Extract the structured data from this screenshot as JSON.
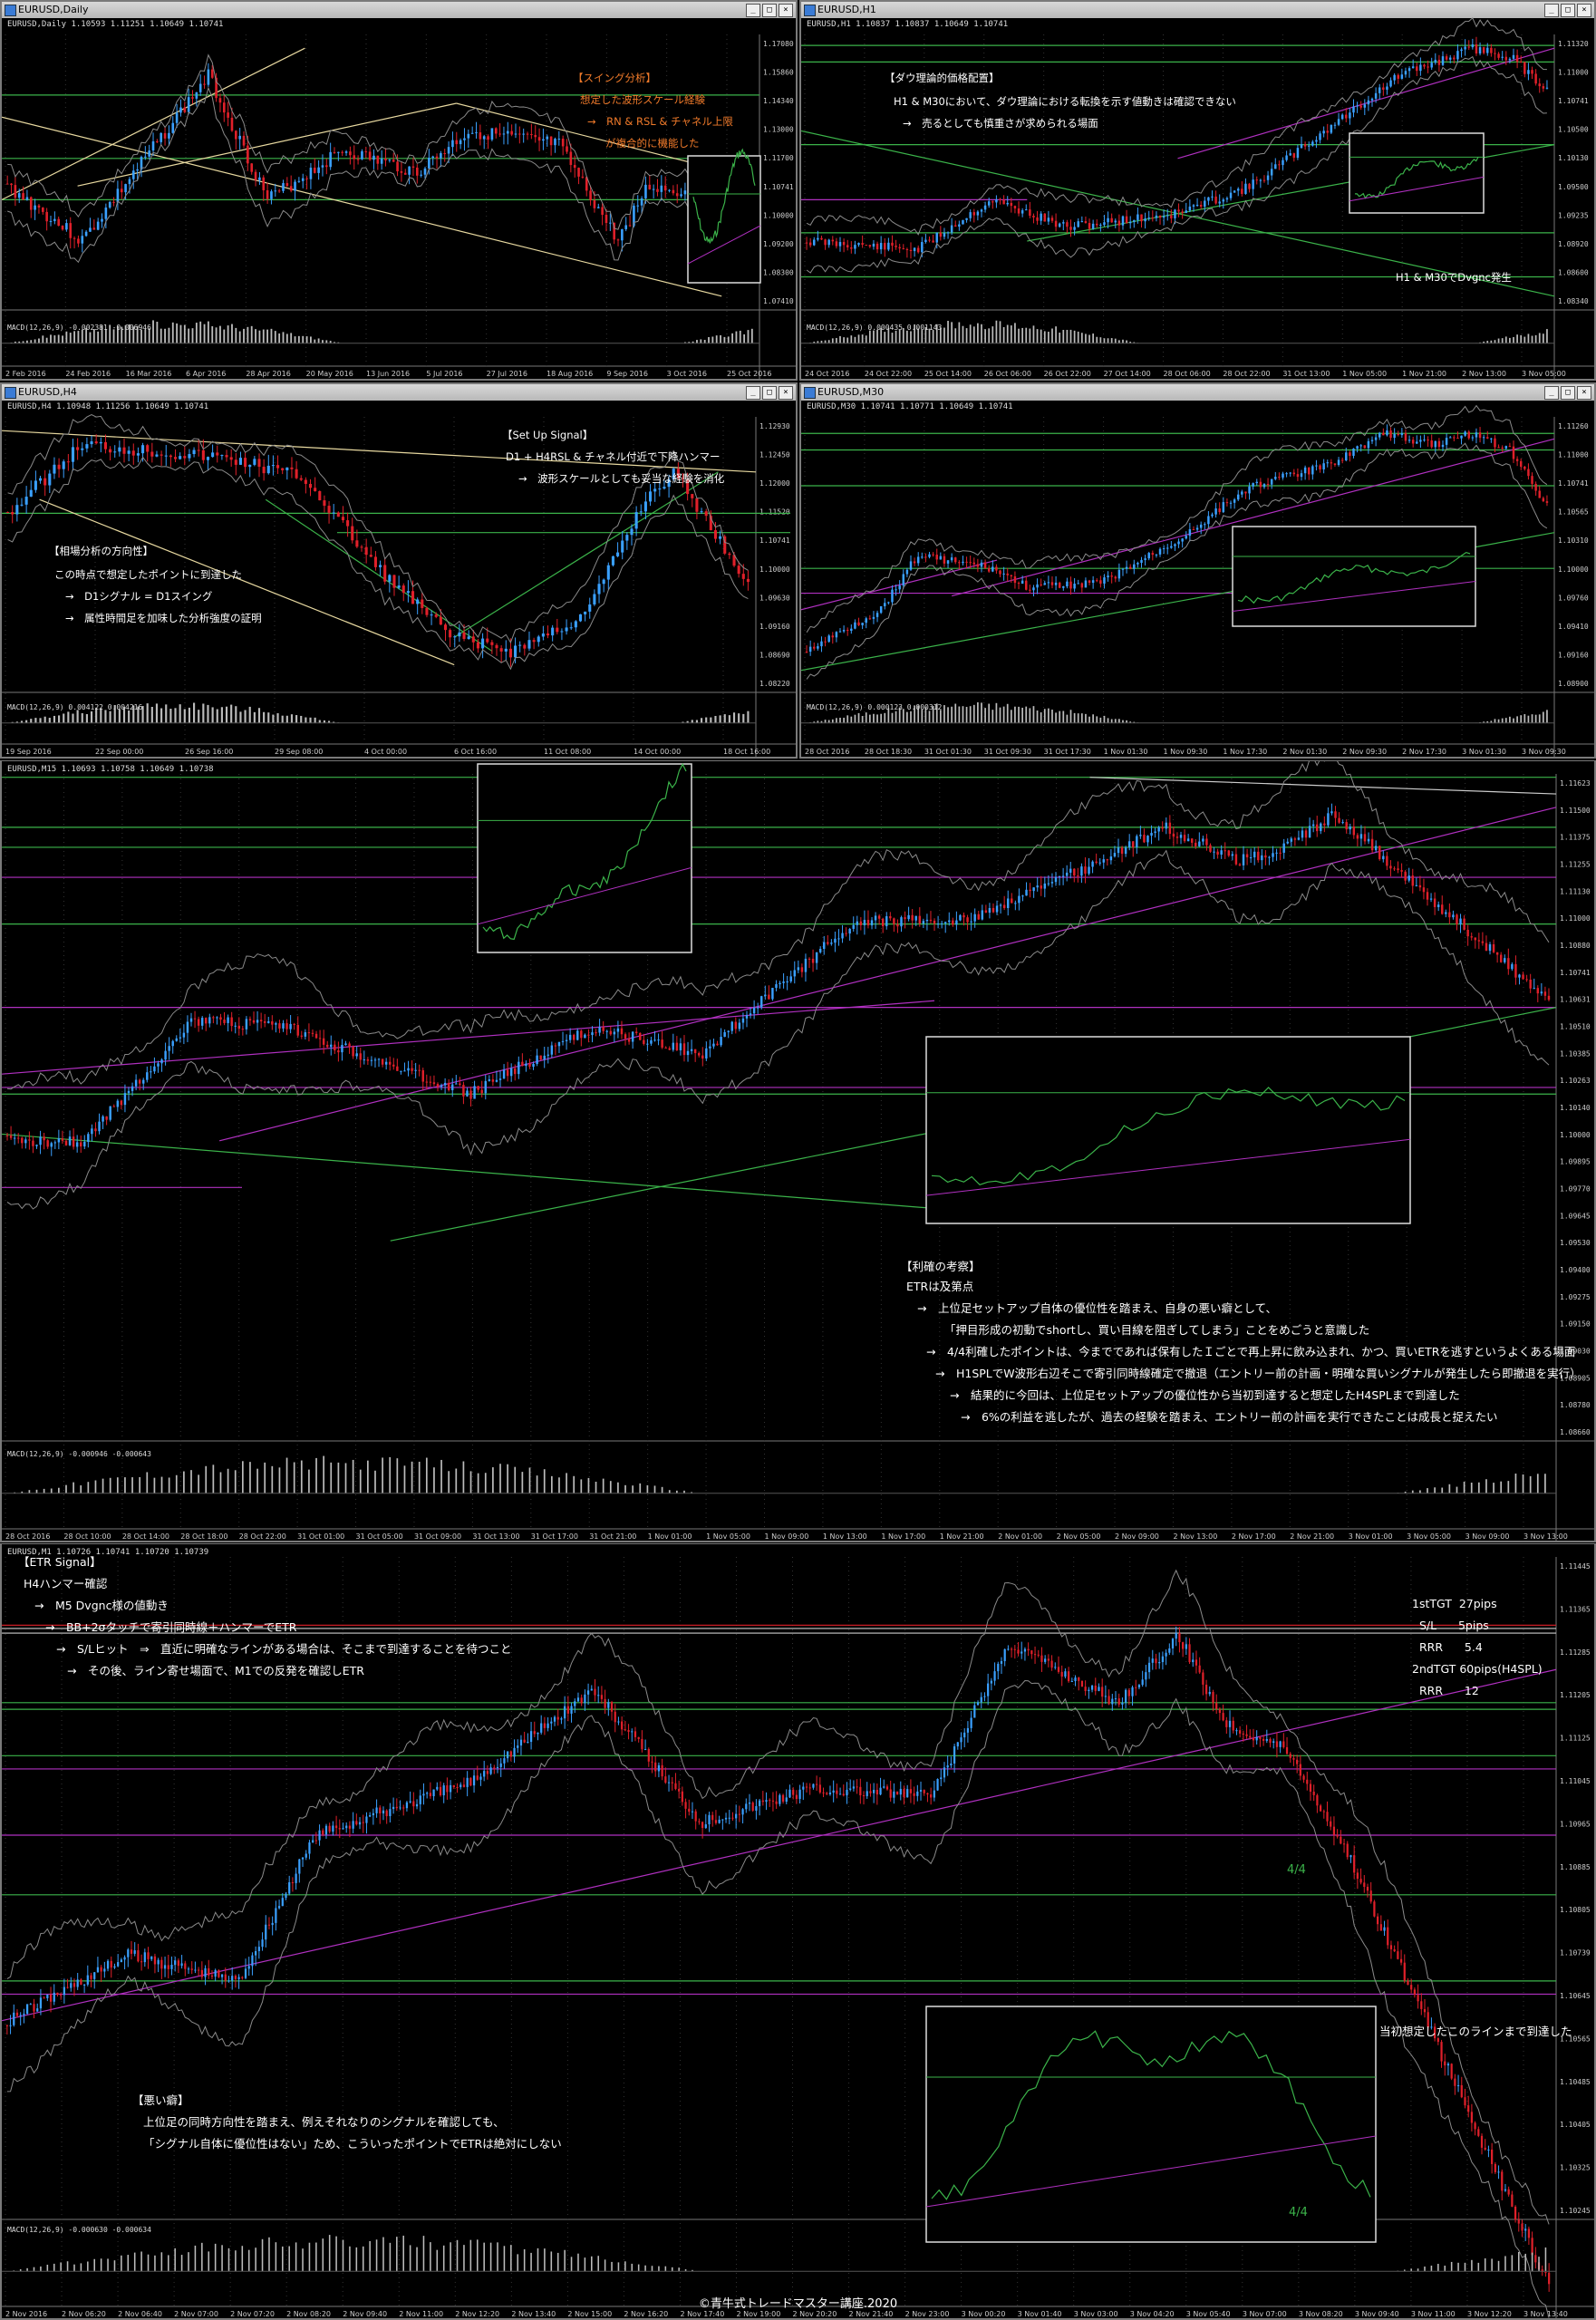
{
  "windows": {
    "daily": {
      "title": "EURUSD,Daily",
      "info": "EURUSD,Daily  1.10593 1.11251 1.10649 1.10741",
      "macd": "MACD(12,26,9) -0.002381 -0.006946",
      "xlabels": [
        "2 Feb 2016",
        "24 Feb 2016",
        "16 Mar 2016",
        "6 Apr 2016",
        "28 Apr 2016",
        "20 May 2016",
        "13 Jun 2016",
        "5 Jul 2016",
        "27 Jul 2016",
        "18 Aug 2016",
        "9 Sep 2016",
        "3 Oct 2016",
        "25 Oct 2016"
      ],
      "ylabels": [
        "1.17080",
        "1.15860",
        "1.14340",
        "1.13000",
        "1.11700",
        "1.10741",
        "1.10000",
        "1.09200",
        "1.08300",
        "1.07410"
      ],
      "notes": [
        {
          "text": "【スイング分析】"
        },
        {
          "text": "想定した波形スケール経験"
        },
        {
          "text": "→　RN & RSL & チャネル上限"
        },
        {
          "text": "が複合的に機能した"
        }
      ]
    },
    "h1": {
      "title": "EURUSD,H1",
      "info": "EURUSD,H1  1.10837 1.10837 1.10649 1.10741",
      "macd": "MACD(12,26,9) 0.000435 0.001143",
      "xlabels": [
        "24 Oct 2016",
        "24 Oct 22:00",
        "25 Oct 14:00",
        "26 Oct 06:00",
        "26 Oct 22:00",
        "27 Oct 14:00",
        "28 Oct 06:00",
        "28 Oct 22:00",
        "31 Oct 13:00",
        "1 Nov 05:00",
        "1 Nov 21:00",
        "2 Nov 13:00",
        "3 Nov 05:00"
      ],
      "ylabels": [
        "1.11320",
        "1.11000",
        "1.10741",
        "1.10500",
        "1.10130",
        "1.09500",
        "1.09235",
        "1.08920",
        "1.08600",
        "1.08340"
      ],
      "notes": [
        {
          "text": "【ダウ理論的価格配置】"
        },
        {
          "text": "H1 & M30において、ダウ理論における転換を示す値動きは確認できない"
        },
        {
          "text": "→　売るとしても慎重さが求められる場面"
        },
        {
          "text": "H1 & M30でDvgnc発生"
        }
      ]
    },
    "h4": {
      "title": "EURUSD,H4",
      "info": "EURUSD,H4  1.10948 1.11256 1.10649 1.10741",
      "macd": "MACD(12,26,9) 0.004122 0.004216",
      "xlabels": [
        "19 Sep 2016",
        "22 Sep 00:00",
        "26 Sep 16:00",
        "29 Sep 08:00",
        "4 Oct 00:00",
        "6 Oct 16:00",
        "11 Oct 08:00",
        "14 Oct 00:00",
        "18 Oct 16:00"
      ],
      "ylabels": [
        "1.12930",
        "1.12450",
        "1.12000",
        "1.11520",
        "1.10741",
        "1.10000",
        "1.09630",
        "1.09160",
        "1.08690",
        "1.08220"
      ],
      "notes": [
        {
          "text": "【Set Up Signal】"
        },
        {
          "text": "D1 + H4RSL & チャネル付近で下降ハンマー"
        },
        {
          "text": "→　波形スケールとしても妥当な経験を消化"
        },
        {
          "text": "【相場分析の方向性】"
        },
        {
          "text": "この時点で想定したポイントに到達した"
        },
        {
          "text": "→　D1シグナル = D1スイング"
        },
        {
          "text": "→　属性時間足を加味した分析強度の証明"
        }
      ]
    },
    "m30": {
      "title": "EURUSD,M30",
      "info": "EURUSD,M30  1.10741 1.10771 1.10649 1.10741",
      "macd": "MACD(12,26,9) 0.000123 0.000312",
      "xlabels": [
        "28 Oct 2016",
        "28 Oct 18:30",
        "31 Oct 01:30",
        "31 Oct 09:30",
        "31 Oct 17:30",
        "1 Nov 01:30",
        "1 Nov 09:30",
        "1 Nov 17:30",
        "2 Nov 01:30",
        "2 Nov 09:30",
        "2 Nov 17:30",
        "3 Nov 01:30",
        "3 Nov 09:30"
      ],
      "ylabels": [
        "1.11260",
        "1.11000",
        "1.10741",
        "1.10565",
        "1.10310",
        "1.10000",
        "1.09760",
        "1.09410",
        "1.09160",
        "1.08900"
      ],
      "notes": []
    },
    "m15": {
      "info": "EURUSD,M15  1.10693 1.10758 1.10649 1.10738",
      "macd": "MACD(12,26,9) -0.000946 -0.000643",
      "xlabels": [
        "28 Oct 2016",
        "28 Oct 10:00",
        "28 Oct 14:00",
        "28 Oct 18:00",
        "28 Oct 22:00",
        "31 Oct 01:00",
        "31 Oct 05:00",
        "31 Oct 09:00",
        "31 Oct 13:00",
        "31 Oct 17:00",
        "31 Oct 21:00",
        "1 Nov 01:00",
        "1 Nov 05:00",
        "1 Nov 09:00",
        "1 Nov 13:00",
        "1 Nov 17:00",
        "1 Nov 21:00",
        "2 Nov 01:00",
        "2 Nov 05:00",
        "2 Nov 09:00",
        "2 Nov 13:00",
        "2 Nov 17:00",
        "2 Nov 21:00",
        "3 Nov 01:00",
        "3 Nov 05:00",
        "3 Nov 09:00",
        "3 Nov 13:00"
      ],
      "ylabels": [
        "1.11623",
        "1.11500",
        "1.11375",
        "1.11255",
        "1.11130",
        "1.11000",
        "1.10880",
        "1.10741",
        "1.10631",
        "1.10510",
        "1.10385",
        "1.10263",
        "1.10140",
        "1.10000",
        "1.09895",
        "1.09770",
        "1.09645",
        "1.09530",
        "1.09400",
        "1.09275",
        "1.09150",
        "1.09030",
        "1.08905",
        "1.08780",
        "1.08660"
      ],
      "notes": [
        {
          "text": "【利確の考察】"
        },
        {
          "text": "ETRは及第点"
        },
        {
          "text": "→　上位足セットアップ自体の優位性を踏まえ、自身の悪い癖として、"
        },
        {
          "text": "「押目形成の初動でshortし、買い目線を阻ぎしてしまう」ことをめごうと意識した"
        },
        {
          "text": "→　4/4利確したポイントは、今までであれば保有したＩごとで再上昇に飲み込まれ、かつ、買いETRを逃すというよくある場面"
        },
        {
          "text": "→　H1SPLでW波形右辺そこで寄引同時線確定で撤退（エントリー前の計画・明確な買いシグナルが発生したら即撤退を実行）"
        },
        {
          "text": "→　結果的に今回は、上位足セットアップの優位性から当初到達すると想定したH4SPLまで到達した"
        },
        {
          "text": "→　6%の利益を逃したが、過去の経験を踏まえ、エントリー前の計画を実行できたことは成長と捉えたい"
        }
      ]
    },
    "m1": {
      "info": "EURUSD,M1  1.10726 1.10741 1.10720 1.10739",
      "macd": "MACD(12,26,9) -0.000630 -0.000634",
      "xlabels": [
        "2 Nov 2016",
        "2 Nov 06:20",
        "2 Nov 06:40",
        "2 Nov 07:00",
        "2 Nov 07:20",
        "2 Nov 08:20",
        "2 Nov 09:40",
        "2 Nov 11:00",
        "2 Nov 12:20",
        "2 Nov 13:40",
        "2 Nov 15:00",
        "2 Nov 16:20",
        "2 Nov 17:40",
        "2 Nov 19:00",
        "2 Nov 20:20",
        "2 Nov 21:40",
        "2 Nov 23:00",
        "3 Nov 00:20",
        "3 Nov 01:40",
        "3 Nov 03:00",
        "3 Nov 04:20",
        "3 Nov 05:40",
        "3 Nov 07:00",
        "3 Nov 08:20",
        "3 Nov 09:40",
        "3 Nov 11:00",
        "3 Nov 12:20",
        "3 Nov 13:40"
      ],
      "ylabels": [
        "1.11445",
        "1.11365",
        "1.11285",
        "1.11205",
        "1.11125",
        "1.11045",
        "1.10965",
        "1.10885",
        "1.10805",
        "1.10739",
        "1.10645",
        "1.10565",
        "1.10485",
        "1.10405",
        "1.10325",
        "1.10245"
      ],
      "notes": [
        {
          "text": "【ETR Signal】"
        },
        {
          "text": "H4ハンマー確認"
        },
        {
          "text": "→　M5 Dvgnc様の値動き"
        },
        {
          "text": "→　BB+2σタッチで寄引同時線＋ハンマーでETR"
        },
        {
          "text": "→　S/Lヒット　⇒　直近に明確なラインがある場合は、そこまで到達することを待つこと"
        },
        {
          "text": "→　その後、ライン寄せ場面で、M1での反発を確認しETR"
        },
        {
          "text": "【悪い癖】"
        },
        {
          "text": "上位足の同時方向性を踏まえ、例えそれなりのシグナルを確認しても、"
        },
        {
          "text": "「シグナル自体に優位性はない」ため、こういったポイントでETRは絶対にしない"
        },
        {
          "text": "当初想定したこのラインまで到達した"
        },
        {
          "text": "4/4"
        },
        {
          "text": "4/4"
        }
      ],
      "stats": [
        {
          "label": "1stTGT",
          "value": "27pips"
        },
        {
          "label": "S/L",
          "value": "5pips"
        },
        {
          "label": "RRR",
          "value": "5.4"
        },
        {
          "label": "2ndTGT",
          "value": "60pips(H4SPL)"
        },
        {
          "label": "RRR",
          "value": "12"
        }
      ]
    }
  },
  "copyright": "©青牛式トレードマスター講座.2020",
  "colors": {
    "bull": "#3aa0ff",
    "bear": "#e0202a",
    "green": "#3bb34a",
    "magenta": "#b030c0",
    "bb": "#8a8a8a",
    "orange": "#f07a2a",
    "axis": "#777777"
  }
}
